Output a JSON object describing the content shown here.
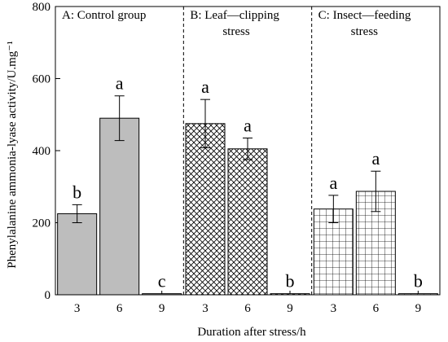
{
  "chart_data": {
    "type": "bar",
    "ylabel": "Phenylalanine ammonia-lyase activity/U.mg⁻¹",
    "xlabel": "Duration after stress/h",
    "ylim": [
      0,
      800
    ],
    "yticks": [
      0,
      200,
      400,
      600,
      800
    ],
    "grid": false,
    "groups": [
      {
        "label": "A: Control group",
        "pattern": "solid-gray",
        "bars": [
          {
            "x": "3",
            "value": 225,
            "err": 25,
            "sig": "b"
          },
          {
            "x": "6",
            "value": 490,
            "err": 62,
            "sig": "a"
          },
          {
            "x": "9",
            "value": 3,
            "err": 0,
            "sig": "c"
          }
        ]
      },
      {
        "label": "B: Leaf—clipping stress",
        "pattern": "diagonal-crosshatch",
        "bars": [
          {
            "x": "3",
            "value": 475,
            "err": 67,
            "sig": "a"
          },
          {
            "x": "6",
            "value": 405,
            "err": 30,
            "sig": "a"
          },
          {
            "x": "9",
            "value": 3,
            "err": 0,
            "sig": "b"
          }
        ]
      },
      {
        "label": "C: Insect—feeding stress",
        "pattern": "square-grid",
        "bars": [
          {
            "x": "3",
            "value": 238,
            "err": 38,
            "sig": "a"
          },
          {
            "x": "6",
            "value": 287,
            "err": 56,
            "sig": "a"
          },
          {
            "x": "9",
            "value": 3,
            "err": 0,
            "sig": "b"
          }
        ]
      }
    ],
    "colors": {
      "bar_fill_solid": "#bdbdbd",
      "stroke": "#000000",
      "background": "#ffffff"
    }
  }
}
